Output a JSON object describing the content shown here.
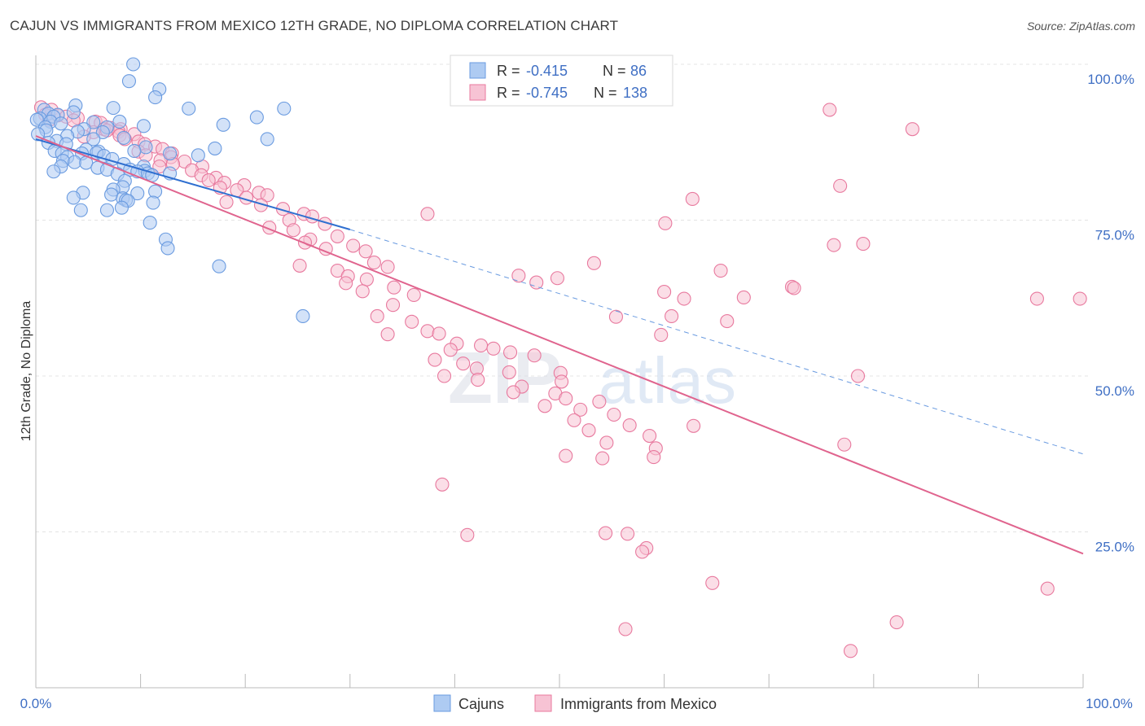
{
  "title": "CAJUN VS IMMIGRANTS FROM MEXICO 12TH GRADE, NO DIPLOMA CORRELATION CHART",
  "source": "Source: ZipAtlas.com",
  "watermark": {
    "zip": "ZIP",
    "atlas": "atlas"
  },
  "legend": {
    "rows": [
      {
        "r_label": "R =",
        "r_value": "-0.415",
        "n_label": "N =",
        "n_value": "86"
      },
      {
        "r_label": "R =",
        "r_value": "-0.745",
        "n_label": "N =",
        "n_value": "138"
      }
    ]
  },
  "bottom_legend": [
    "Cajuns",
    "Immigrants from Mexico"
  ],
  "colors": {
    "cajun": "#6a9be0",
    "cajun_fill": "#aecbf2",
    "mexico": "#e8799e",
    "mexico_fill": "#f7c3d4",
    "tick_text": "#3f6fc4",
    "grid": "#e4e4e4"
  },
  "chart_data": {
    "type": "scatter",
    "xlabel": "",
    "ylabel": "12th Grade, No Diploma",
    "xlim": [
      0,
      100
    ],
    "ylim": [
      0,
      100
    ],
    "x_tick_labels": [
      "0.0%",
      "100.0%"
    ],
    "y_tick_labels": [
      "100.0%",
      "75.0%",
      "50.0%",
      "25.0%"
    ],
    "y_ticks": [
      100,
      75,
      50,
      25
    ],
    "grid": true,
    "legend_position": "top-center",
    "series": [
      {
        "name": "Cajuns",
        "r": -0.415,
        "n": 86,
        "trend": {
          "x0": 0,
          "y0": 88.0,
          "x1": 30,
          "y1": 73.5,
          "dash_to_x": 100,
          "dash_to_y": 37.5
        },
        "points": [
          [
            9.3,
            100
          ],
          [
            8.9,
            97.3
          ],
          [
            11.8,
            96.0
          ],
          [
            11.4,
            94.7
          ],
          [
            3.8,
            93.4
          ],
          [
            7.4,
            93.0
          ],
          [
            14.6,
            92.9
          ],
          [
            23.7,
            92.9
          ],
          [
            0.8,
            92.7
          ],
          [
            3.6,
            92.3
          ],
          [
            1.2,
            92.1
          ],
          [
            2.1,
            91.9
          ],
          [
            1.7,
            91.6
          ],
          [
            0.4,
            91.3
          ],
          [
            0.1,
            91.1
          ],
          [
            1.4,
            90.8
          ],
          [
            8.0,
            90.8
          ],
          [
            5.5,
            90.7
          ],
          [
            2.4,
            90.5
          ],
          [
            10.3,
            90.1
          ],
          [
            0.9,
            89.9
          ],
          [
            6.8,
            89.9
          ],
          [
            4.6,
            89.6
          ],
          [
            1.0,
            89.4
          ],
          [
            4.0,
            89.2
          ],
          [
            6.4,
            89.1
          ],
          [
            0.2,
            88.8
          ],
          [
            3.0,
            88.5
          ],
          [
            8.4,
            88.2
          ],
          [
            5.5,
            88.0
          ],
          [
            2.0,
            87.7
          ],
          [
            1.2,
            87.4
          ],
          [
            2.9,
            87.2
          ],
          [
            10.5,
            86.7
          ],
          [
            17.1,
            86.5
          ],
          [
            4.8,
            86.3
          ],
          [
            1.8,
            86.1
          ],
          [
            9.4,
            86.1
          ],
          [
            6.0,
            86.0
          ],
          [
            5.8,
            85.8
          ],
          [
            2.5,
            85.7
          ],
          [
            4.4,
            85.7
          ],
          [
            12.8,
            85.7
          ],
          [
            15.5,
            85.4
          ],
          [
            6.5,
            85.3
          ],
          [
            3.0,
            85.1
          ],
          [
            7.3,
            84.8
          ],
          [
            2.6,
            84.5
          ],
          [
            3.7,
            84.3
          ],
          [
            4.8,
            84.2
          ],
          [
            8.4,
            84.0
          ],
          [
            10.3,
            83.6
          ],
          [
            2.4,
            83.6
          ],
          [
            5.9,
            83.4
          ],
          [
            6.8,
            83.1
          ],
          [
            9.0,
            83.1
          ],
          [
            10.4,
            82.9
          ],
          [
            1.7,
            82.8
          ],
          [
            9.7,
            82.8
          ],
          [
            10.7,
            82.5
          ],
          [
            12.8,
            82.5
          ],
          [
            7.8,
            82.4
          ],
          [
            11.1,
            82.2
          ],
          [
            8.5,
            81.3
          ],
          [
            8.3,
            80.3
          ],
          [
            7.4,
            79.9
          ],
          [
            11.4,
            79.6
          ],
          [
            4.5,
            79.4
          ],
          [
            9.7,
            79.3
          ],
          [
            7.2,
            79.1
          ],
          [
            3.6,
            78.6
          ],
          [
            8.3,
            78.5
          ],
          [
            8.6,
            78.2
          ],
          [
            8.8,
            78.1
          ],
          [
            11.2,
            77.8
          ],
          [
            8.2,
            77.0
          ],
          [
            4.3,
            76.6
          ],
          [
            6.8,
            76.6
          ],
          [
            10.9,
            74.6
          ],
          [
            12.4,
            71.9
          ],
          [
            12.6,
            70.5
          ],
          [
            17.5,
            67.6
          ],
          [
            25.5,
            59.6
          ],
          [
            17.9,
            90.3
          ],
          [
            22.1,
            88.0
          ],
          [
            21.1,
            91.5
          ]
        ]
      },
      {
        "name": "Immigrants from Mexico",
        "r": -0.745,
        "n": 138,
        "trend": {
          "x0": 0,
          "y0": 88.5,
          "x1": 100,
          "y1": 21.5
        },
        "points": [
          [
            0.5,
            93.1
          ],
          [
            1.5,
            92.7
          ],
          [
            0.9,
            91.9
          ],
          [
            2.1,
            91.8
          ],
          [
            2.9,
            91.6
          ],
          [
            4.0,
            91.4
          ],
          [
            1.3,
            91.1
          ],
          [
            3.6,
            91.0
          ],
          [
            5.7,
            90.8
          ],
          [
            6.2,
            90.6
          ],
          [
            7.1,
            89.8
          ],
          [
            6.5,
            89.6
          ],
          [
            8.1,
            89.6
          ],
          [
            6.8,
            89.4
          ],
          [
            7.9,
            89.2
          ],
          [
            5.5,
            89.1
          ],
          [
            9.4,
            88.8
          ],
          [
            8.0,
            88.6
          ],
          [
            4.6,
            88.4
          ],
          [
            8.5,
            88.0
          ],
          [
            9.8,
            87.6
          ],
          [
            10.4,
            87.2
          ],
          [
            11.4,
            86.8
          ],
          [
            12.1,
            86.4
          ],
          [
            9.8,
            86.0
          ],
          [
            13.0,
            85.7
          ],
          [
            10.5,
            85.4
          ],
          [
            12.9,
            85.1
          ],
          [
            11.9,
            84.6
          ],
          [
            14.2,
            84.4
          ],
          [
            13.1,
            84.0
          ],
          [
            11.8,
            83.6
          ],
          [
            15.9,
            83.6
          ],
          [
            14.9,
            83.0
          ],
          [
            15.8,
            82.2
          ],
          [
            17.2,
            81.8
          ],
          [
            16.5,
            81.4
          ],
          [
            18.0,
            81.0
          ],
          [
            19.9,
            80.6
          ],
          [
            17.6,
            80.2
          ],
          [
            19.2,
            79.8
          ],
          [
            21.3,
            79.4
          ],
          [
            22.1,
            79.0
          ],
          [
            20.1,
            78.6
          ],
          [
            18.2,
            77.9
          ],
          [
            21.5,
            77.4
          ],
          [
            23.6,
            76.8
          ],
          [
            25.6,
            76.0
          ],
          [
            26.4,
            75.6
          ],
          [
            24.2,
            75.0
          ],
          [
            27.6,
            74.4
          ],
          [
            22.3,
            73.8
          ],
          [
            24.6,
            73.4
          ],
          [
            28.8,
            72.4
          ],
          [
            26.2,
            71.9
          ],
          [
            25.7,
            71.4
          ],
          [
            30.3,
            70.9
          ],
          [
            27.7,
            70.4
          ],
          [
            31.5,
            70.0
          ],
          [
            32.3,
            68.2
          ],
          [
            25.2,
            67.7
          ],
          [
            33.6,
            67.5
          ],
          [
            28.8,
            66.9
          ],
          [
            29.8,
            66.0
          ],
          [
            31.6,
            65.5
          ],
          [
            29.6,
            64.9
          ],
          [
            34.2,
            64.2
          ],
          [
            31.2,
            63.6
          ],
          [
            36.1,
            63.0
          ],
          [
            34.1,
            61.4
          ],
          [
            32.6,
            59.6
          ],
          [
            35.9,
            58.7
          ],
          [
            37.4,
            57.2
          ],
          [
            38.5,
            56.8
          ],
          [
            33.6,
            56.7
          ],
          [
            40.2,
            55.2
          ],
          [
            42.5,
            54.9
          ],
          [
            43.7,
            54.4
          ],
          [
            39.6,
            54.2
          ],
          [
            45.3,
            53.8
          ],
          [
            47.6,
            53.3
          ],
          [
            38.1,
            52.6
          ],
          [
            40.8,
            52.0
          ],
          [
            42.1,
            51.2
          ],
          [
            45.2,
            50.6
          ],
          [
            50.1,
            50.5
          ],
          [
            39.0,
            50.0
          ],
          [
            42.2,
            49.4
          ],
          [
            50.2,
            49.1
          ],
          [
            46.4,
            48.3
          ],
          [
            45.6,
            47.4
          ],
          [
            49.6,
            47.2
          ],
          [
            50.6,
            46.4
          ],
          [
            53.8,
            45.9
          ],
          [
            48.6,
            45.2
          ],
          [
            52.0,
            44.6
          ],
          [
            55.2,
            43.8
          ],
          [
            51.4,
            42.9
          ],
          [
            56.7,
            42.1
          ],
          [
            52.8,
            41.3
          ],
          [
            58.6,
            40.4
          ],
          [
            54.5,
            39.3
          ],
          [
            59.2,
            38.4
          ],
          [
            50.6,
            37.2
          ],
          [
            54.1,
            36.8
          ],
          [
            59.0,
            37.0
          ],
          [
            60.0,
            63.5
          ],
          [
            61.9,
            62.4
          ],
          [
            67.6,
            62.6
          ],
          [
            49.8,
            65.7
          ],
          [
            46.1,
            66.1
          ],
          [
            65.4,
            66.9
          ],
          [
            72.2,
            64.3
          ],
          [
            60.7,
            59.6
          ],
          [
            55.4,
            59.5
          ],
          [
            66.0,
            58.8
          ],
          [
            59.7,
            56.6
          ],
          [
            62.8,
            42.0
          ],
          [
            77.2,
            39.0
          ],
          [
            78.5,
            50.0
          ],
          [
            47.8,
            65.0
          ],
          [
            53.3,
            68.1
          ],
          [
            60.1,
            74.5
          ],
          [
            62.7,
            78.4
          ],
          [
            76.8,
            80.5
          ],
          [
            79.0,
            71.2
          ],
          [
            76.2,
            71.0
          ],
          [
            75.8,
            92.7
          ],
          [
            95.6,
            62.4
          ],
          [
            99.7,
            62.4
          ],
          [
            37.4,
            76.0
          ],
          [
            38.8,
            32.6
          ],
          [
            41.2,
            24.5
          ],
          [
            54.4,
            24.8
          ],
          [
            56.5,
            24.7
          ],
          [
            58.3,
            22.4
          ],
          [
            57.9,
            21.8
          ],
          [
            64.6,
            16.8
          ],
          [
            82.2,
            10.5
          ],
          [
            96.6,
            15.9
          ],
          [
            77.8,
            5.9
          ],
          [
            56.3,
            9.4
          ],
          [
            72.4,
            64.1
          ],
          [
            83.7,
            89.6
          ]
        ]
      }
    ]
  }
}
